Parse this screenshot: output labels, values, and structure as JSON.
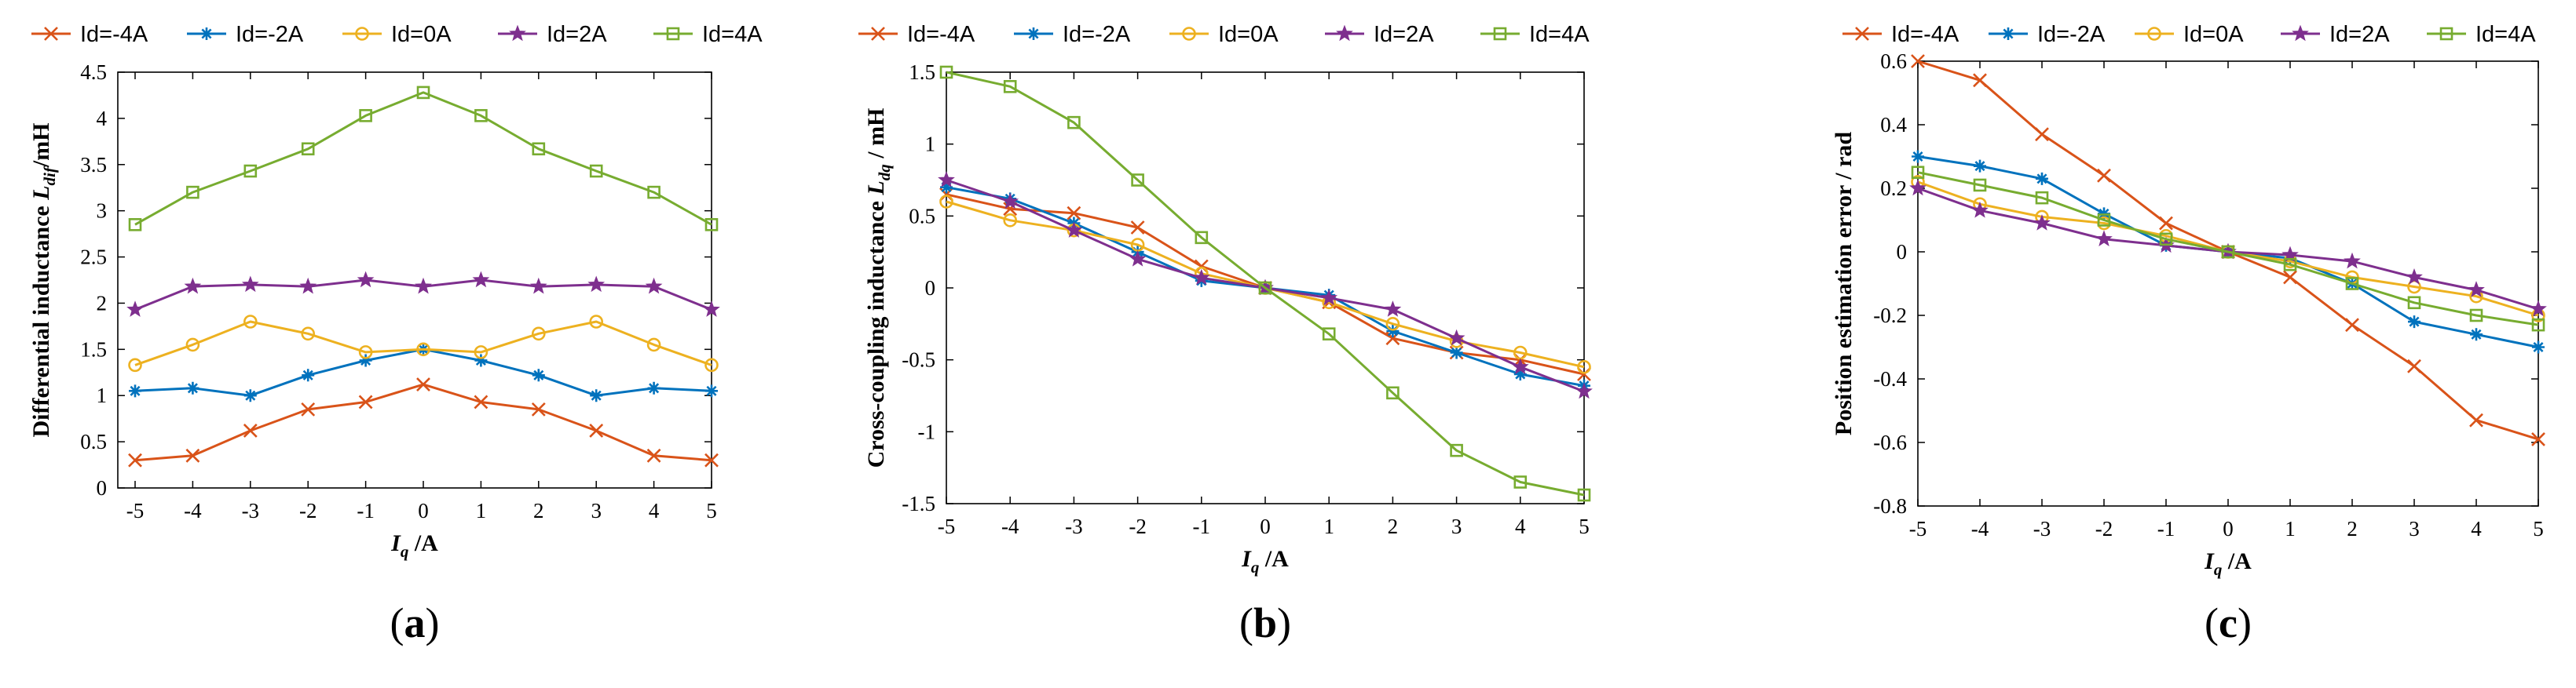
{
  "series_style": [
    {
      "name": "Id=-4A",
      "color": "#D95319",
      "marker": "x"
    },
    {
      "name": "Id=-2A",
      "color": "#0072BD",
      "marker": "asterisk"
    },
    {
      "name": "Id=0A",
      "color": "#EDB120",
      "marker": "circle"
    },
    {
      "name": "Id=2A",
      "color": "#7E2F8E",
      "marker": "star"
    },
    {
      "name": "Id=4A",
      "color": "#77AC30",
      "marker": "square"
    }
  ],
  "chart_data": [
    {
      "type": "line",
      "panel": "a",
      "caption": {
        "open": "(",
        "letter": "a",
        "close": ")"
      },
      "x": [
        -5,
        -4,
        -3,
        -2,
        -1,
        0,
        1,
        2,
        3,
        4,
        5
      ],
      "xlim": [
        -5.3,
        5
      ],
      "ylim": [
        0,
        4.5
      ],
      "xticks": [
        -5,
        -4,
        -3,
        -2,
        -1,
        0,
        1,
        2,
        3,
        4,
        5
      ],
      "yticks": [
        0,
        0.5,
        1,
        1.5,
        2,
        2.5,
        3,
        3.5,
        4,
        4.5
      ],
      "xlabel": {
        "sym": "I",
        "sub": "q",
        "unit": " /A"
      },
      "ylabel": {
        "pre": "Differential inductance ",
        "sym": "L",
        "sub": "dif",
        "unit": "/mH"
      },
      "series": [
        {
          "name": "Id=-4A",
          "values": [
            0.3,
            0.35,
            0.62,
            0.85,
            0.93,
            1.12,
            0.93,
            0.85,
            0.62,
            0.35,
            0.3
          ]
        },
        {
          "name": "Id=-2A",
          "values": [
            1.05,
            1.08,
            1.0,
            1.22,
            1.38,
            1.5,
            1.38,
            1.22,
            1.0,
            1.08,
            1.05
          ]
        },
        {
          "name": "Id=0A",
          "values": [
            1.33,
            1.55,
            1.8,
            1.67,
            1.47,
            1.5,
            1.47,
            1.67,
            1.8,
            1.55,
            1.33
          ]
        },
        {
          "name": "Id=2A",
          "values": [
            1.93,
            2.18,
            2.2,
            2.18,
            2.25,
            2.18,
            2.25,
            2.18,
            2.2,
            2.18,
            1.93
          ]
        },
        {
          "name": "Id=4A",
          "values": [
            2.85,
            3.2,
            3.43,
            3.67,
            4.03,
            4.28,
            4.03,
            3.67,
            3.43,
            3.2,
            2.85
          ]
        }
      ]
    },
    {
      "type": "line",
      "panel": "b",
      "caption": {
        "open": "(",
        "letter": "b",
        "close": ")"
      },
      "x": [
        -5,
        -4,
        -3,
        -2,
        -1,
        0,
        1,
        2,
        3,
        4,
        5
      ],
      "xlim": [
        -5,
        5
      ],
      "ylim": [
        -1.5,
        1.5
      ],
      "xticks": [
        -5,
        -4,
        -3,
        -2,
        -1,
        0,
        1,
        2,
        3,
        4,
        5
      ],
      "yticks": [
        -1.5,
        -1,
        -0.5,
        0,
        0.5,
        1,
        1.5
      ],
      "xlabel": {
        "sym": "I",
        "sub": "q",
        "unit": " /A"
      },
      "ylabel": {
        "pre": "Cross-coupling inductance ",
        "sym": "L",
        "sub": "dq",
        "unit": " / mH"
      },
      "series": [
        {
          "name": "Id=-4A",
          "values": [
            0.65,
            0.55,
            0.52,
            0.42,
            0.15,
            0.0,
            -0.1,
            -0.35,
            -0.45,
            -0.5,
            -0.6
          ]
        },
        {
          "name": "Id=-2A",
          "values": [
            0.7,
            0.62,
            0.45,
            0.25,
            0.05,
            0.0,
            -0.05,
            -0.3,
            -0.45,
            -0.6,
            -0.68
          ]
        },
        {
          "name": "Id=0A",
          "values": [
            0.6,
            0.47,
            0.4,
            0.3,
            0.1,
            0.0,
            -0.1,
            -0.25,
            -0.37,
            -0.45,
            -0.55
          ]
        },
        {
          "name": "Id=2A",
          "values": [
            0.75,
            0.6,
            0.4,
            0.2,
            0.07,
            0.0,
            -0.07,
            -0.15,
            -0.35,
            -0.55,
            -0.72
          ]
        },
        {
          "name": "Id=4A",
          "values": [
            1.5,
            1.4,
            1.15,
            0.75,
            0.35,
            0.0,
            -0.32,
            -0.73,
            -1.13,
            -1.35,
            -1.44
          ]
        }
      ]
    },
    {
      "type": "line",
      "panel": "c",
      "caption": {
        "open": "(",
        "letter": "c",
        "close": ")"
      },
      "x": [
        -5,
        -4,
        -3,
        -2,
        -1,
        0,
        1,
        2,
        3,
        4,
        5
      ],
      "xlim": [
        -5,
        5
      ],
      "ylim": [
        -0.8,
        0.6
      ],
      "xticks": [
        -5,
        -4,
        -3,
        -2,
        -1,
        0,
        1,
        2,
        3,
        4,
        5
      ],
      "yticks": [
        -0.8,
        -0.6,
        -0.4,
        -0.2,
        0,
        0.2,
        0.4,
        0.6
      ],
      "xlabel": {
        "sym": "I",
        "sub": "q",
        "unit": " /A"
      },
      "ylabel": {
        "pre": "Position estimation error / rad",
        "sym": "",
        "sub": "",
        "unit": ""
      },
      "series": [
        {
          "name": "Id=-4A",
          "values": [
            0.6,
            0.54,
            0.37,
            0.24,
            0.09,
            0.0,
            -0.08,
            -0.23,
            -0.36,
            -0.53,
            -0.59
          ]
        },
        {
          "name": "Id=-2A",
          "values": [
            0.3,
            0.27,
            0.23,
            0.12,
            0.02,
            0.0,
            -0.02,
            -0.1,
            -0.22,
            -0.26,
            -0.3
          ]
        },
        {
          "name": "Id=0A",
          "values": [
            0.22,
            0.15,
            0.11,
            0.09,
            0.05,
            0.0,
            -0.03,
            -0.08,
            -0.11,
            -0.14,
            -0.2
          ]
        },
        {
          "name": "Id=2A",
          "values": [
            0.2,
            0.13,
            0.09,
            0.04,
            0.02,
            0.0,
            -0.01,
            -0.03,
            -0.08,
            -0.12,
            -0.18
          ]
        },
        {
          "name": "Id=4A",
          "values": [
            0.25,
            0.21,
            0.17,
            0.1,
            0.04,
            0.0,
            -0.04,
            -0.1,
            -0.16,
            -0.2,
            -0.23
          ]
        }
      ]
    }
  ]
}
